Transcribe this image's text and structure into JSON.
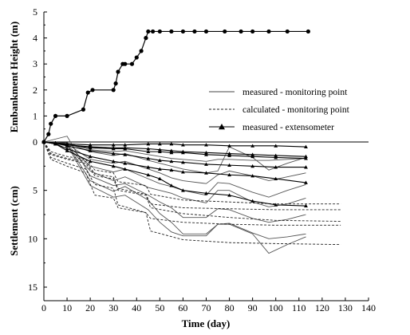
{
  "chart_data": {
    "type": "line",
    "xlabel": "Time (day)",
    "xlim": [
      0,
      140
    ],
    "x_ticks": [
      "0",
      "10",
      "20",
      "30",
      "40",
      "50",
      "60",
      "70",
      "80",
      "90",
      "100",
      "110",
      "120",
      "130",
      "140"
    ],
    "top_panel": {
      "ylabel": "Embankment Height (m)",
      "ylim": [
        0,
        5
      ],
      "y_ticks": [
        "0",
        "1",
        "2",
        "3",
        "4",
        "5"
      ],
      "series": [
        {
          "style": "solid-circle-markers",
          "x": [
            0,
            2,
            3,
            5,
            10,
            17,
            19,
            21,
            30,
            31,
            32,
            34,
            35,
            38,
            40,
            42,
            44,
            45,
            47,
            50,
            55,
            60,
            65,
            70,
            78,
            85,
            90,
            97,
            105,
            114
          ],
          "y": [
            0,
            0.3,
            0.7,
            1.0,
            1.0,
            1.25,
            1.9,
            2.0,
            2.0,
            2.25,
            2.7,
            3.0,
            3.0,
            3.0,
            3.25,
            3.5,
            4.0,
            4.25,
            4.25,
            4.25,
            4.25,
            4.25,
            4.25,
            4.25,
            4.25,
            4.25,
            4.25,
            4.25,
            4.25,
            4.25
          ]
        }
      ]
    },
    "bottom_panel": {
      "ylabel": "Settlement (cm)",
      "ylim": [
        0,
        15
      ],
      "y_reversed": true,
      "y_ticks": [
        "0",
        "5",
        "10",
        "15"
      ],
      "legend": {
        "placement": "top-right",
        "entries": [
          {
            "label": "measured - monitoring point",
            "style": "solid"
          },
          {
            "label": "calculated - monitoring point",
            "style": "dashed"
          },
          {
            "label": "measured - extensometer",
            "style": "triangle"
          }
        ]
      },
      "series": [
        {
          "kind": "measured",
          "x": [
            0,
            10,
            20,
            30,
            35,
            45,
            50,
            55,
            60,
            70,
            75,
            80,
            90,
            97,
            105,
            113
          ],
          "y": [
            0,
            -0.6,
            3.5,
            4.5,
            4.3,
            5.5,
            6.2,
            6.8,
            7.8,
            7.8,
            6.9,
            7.0,
            7.9,
            8.3,
            8.0,
            7.5
          ]
        },
        {
          "kind": "measured",
          "x": [
            0,
            10,
            20,
            30,
            35,
            45,
            50,
            55,
            60,
            70,
            75,
            80,
            90,
            97,
            105,
            113
          ],
          "y": [
            0,
            0.2,
            4.0,
            5.1,
            4.6,
            6.0,
            7.4,
            8.3,
            9.5,
            9.5,
            8.5,
            8.4,
            9.4,
            10.0,
            9.8,
            9.5
          ]
        },
        {
          "kind": "measured",
          "x": [
            0,
            10,
            20,
            30,
            35,
            45,
            50,
            55,
            60,
            70,
            75,
            80,
            90,
            97,
            105,
            113
          ],
          "y": [
            0,
            0.3,
            4.5,
            5.7,
            5.5,
            7.0,
            8.3,
            9.3,
            9.7,
            9.7,
            8.5,
            8.5,
            9.5,
            11.5,
            10.6,
            9.8
          ]
        },
        {
          "kind": "measured",
          "x": [
            0,
            10,
            20,
            30,
            35,
            45,
            50,
            55,
            60,
            70,
            75,
            80,
            90,
            97,
            105,
            113
          ],
          "y": [
            0,
            0.4,
            3.0,
            4.0,
            3.6,
            4.7,
            5.0,
            5.3,
            5.8,
            6.3,
            5.0,
            5.0,
            6.2,
            6.7,
            6.4,
            5.8
          ]
        },
        {
          "kind": "measured",
          "x": [
            0,
            10,
            20,
            30,
            35,
            45,
            50,
            55,
            60,
            70,
            75,
            80,
            90,
            97,
            105,
            113
          ],
          "y": [
            0,
            0.3,
            2.5,
            3.1,
            2.8,
            3.8,
            4.3,
            4.6,
            5.0,
            5.5,
            4.2,
            4.3,
            5.2,
            5.7,
            5.0,
            4.4
          ]
        },
        {
          "kind": "measured",
          "x": [
            0,
            10,
            20,
            30,
            35,
            45,
            50,
            55,
            60,
            70,
            75,
            80,
            90,
            97,
            105,
            113
          ],
          "y": [
            0,
            0.2,
            1.8,
            2.2,
            2.0,
            2.8,
            3.2,
            3.7,
            4.0,
            4.3,
            3.4,
            3.0,
            3.5,
            4.0,
            3.6,
            3.2
          ]
        },
        {
          "kind": "measured",
          "x": [
            0,
            10,
            20,
            30,
            35,
            45,
            50,
            55,
            60,
            70,
            75,
            80,
            90,
            97,
            105,
            113
          ],
          "y": [
            0,
            0.1,
            1.0,
            1.4,
            1.2,
            1.9,
            2.2,
            2.5,
            2.8,
            3.2,
            3.0,
            0.5,
            1.6,
            2.9,
            2.2,
            1.6
          ]
        },
        {
          "kind": "measured",
          "x": [
            0,
            10,
            20,
            30,
            35,
            45,
            50,
            55,
            60,
            70,
            75,
            80,
            90,
            97,
            105,
            113
          ],
          "y": [
            0,
            0.1,
            0.8,
            1.0,
            0.9,
            1.3,
            1.5,
            1.7,
            1.8,
            2.0,
            1.8,
            1.8,
            1.9,
            1.9,
            1.8,
            1.7
          ]
        },
        {
          "kind": "calculated",
          "x": [
            0,
            3,
            10,
            18,
            22,
            30,
            32,
            44,
            46,
            60,
            80,
            100,
            128
          ],
          "y": [
            0,
            1.8,
            2.5,
            3.2,
            5.5,
            5.8,
            6.8,
            7.3,
            7.9,
            8.3,
            8.5,
            8.6,
            8.6
          ]
        },
        {
          "kind": "calculated",
          "x": [
            0,
            3,
            10,
            18,
            22,
            30,
            32,
            44,
            46,
            60,
            80,
            100,
            128
          ],
          "y": [
            0,
            1.6,
            2.2,
            2.8,
            4.4,
            4.8,
            6.5,
            7.3,
            9.2,
            10.1,
            10.4,
            10.5,
            10.6
          ]
        },
        {
          "kind": "calculated",
          "x": [
            0,
            3,
            10,
            18,
            22,
            30,
            32,
            44,
            46,
            60,
            80,
            100,
            128
          ],
          "y": [
            0,
            1.3,
            1.8,
            2.2,
            3.5,
            3.8,
            5.0,
            5.5,
            6.8,
            7.4,
            7.8,
            8.1,
            8.2
          ]
        },
        {
          "kind": "calculated",
          "x": [
            0,
            3,
            10,
            18,
            22,
            30,
            32,
            44,
            46,
            60,
            80,
            100,
            128
          ],
          "y": [
            0,
            1.0,
            1.5,
            1.8,
            2.9,
            3.2,
            4.1,
            4.5,
            5.4,
            6.0,
            6.2,
            6.4,
            6.4
          ]
        },
        {
          "kind": "calculated",
          "x": [
            0,
            3,
            10,
            18,
            22,
            30,
            32,
            44,
            46,
            60,
            80,
            100,
            128
          ],
          "y": [
            0,
            1.2,
            1.7,
            2.0,
            3.3,
            3.6,
            4.8,
            5.4,
            6.4,
            6.8,
            6.9,
            7.0,
            7.0
          ]
        },
        {
          "kind": "extensometer",
          "x": [
            0,
            5,
            10,
            20,
            30,
            35,
            45,
            50,
            55,
            60,
            70,
            80,
            90,
            100,
            113
          ],
          "y": [
            0,
            0.1,
            0.3,
            0.6,
            0.7,
            0.7,
            1.0,
            1.0,
            1.1,
            1.1,
            1.3,
            1.4,
            1.5,
            1.6,
            1.7
          ]
        },
        {
          "kind": "extensometer",
          "x": [
            0,
            5,
            10,
            20,
            30,
            35,
            45,
            50,
            55,
            60,
            70,
            80,
            90,
            100,
            113
          ],
          "y": [
            0,
            0.1,
            0.4,
            0.9,
            1.2,
            1.3,
            1.7,
            1.9,
            2.0,
            2.1,
            2.3,
            2.4,
            2.5,
            2.6,
            2.6
          ]
        },
        {
          "kind": "extensometer",
          "x": [
            0,
            5,
            10,
            20,
            30,
            35,
            45,
            50,
            55,
            60,
            70,
            80,
            90,
            100,
            113
          ],
          "y": [
            0,
            0.2,
            0.7,
            1.5,
            2.0,
            2.2,
            2.6,
            2.8,
            2.9,
            3.1,
            3.2,
            3.4,
            3.5,
            3.8,
            4.2
          ]
        },
        {
          "kind": "extensometer",
          "x": [
            0,
            5,
            10,
            20,
            30,
            35,
            45,
            50,
            55,
            60,
            70,
            80,
            90,
            100,
            113
          ],
          "y": [
            0,
            0.2,
            0.9,
            2.0,
            2.5,
            2.8,
            3.4,
            3.8,
            4.5,
            5.0,
            5.3,
            5.5,
            6.1,
            6.5,
            6.6
          ]
        },
        {
          "kind": "extensometer",
          "x": [
            0,
            5,
            10,
            20,
            30,
            35,
            45,
            50,
            55,
            60,
            70,
            80,
            90,
            100,
            113
          ],
          "y": [
            0,
            0.1,
            0.2,
            0.3,
            0.3,
            0.3,
            0.2,
            0.2,
            0.2,
            0.3,
            0.3,
            0.4,
            0.4,
            0.4,
            0.5
          ]
        },
        {
          "kind": "extensometer",
          "x": [
            0,
            5,
            10,
            20,
            30,
            35,
            45,
            50,
            55,
            60,
            70,
            80,
            90,
            100,
            113
          ],
          "y": [
            0,
            0.1,
            0.3,
            0.5,
            0.6,
            0.6,
            0.7,
            0.8,
            0.9,
            1.0,
            1.1,
            1.2,
            1.3,
            1.4,
            1.5
          ]
        }
      ]
    }
  }
}
